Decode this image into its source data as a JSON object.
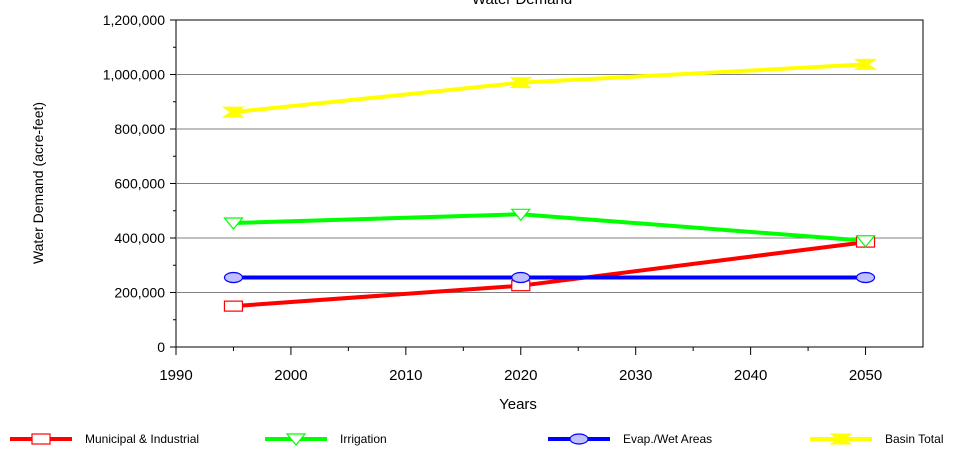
{
  "chart_data": {
    "type": "line",
    "title": "Water Demand",
    "xlabel": "Years",
    "ylabel": "Water Demand (acre-feet)",
    "xlim": [
      1990,
      2055
    ],
    "ylim": [
      0,
      1200000
    ],
    "x_ticks": [
      1990,
      2000,
      2010,
      2020,
      2030,
      2040,
      2050
    ],
    "x_tick_labels": [
      "1990",
      "2000",
      "2010",
      "2020",
      "2030",
      "2040",
      "2050"
    ],
    "y_ticks": [
      0,
      200000,
      400000,
      600000,
      800000,
      1000000,
      1200000
    ],
    "y_tick_labels": [
      "0",
      "200,000",
      "400,000",
      "600,000",
      "800,000",
      "1,000,000",
      "1,200,000"
    ],
    "grid": "horizontal",
    "legend_position": "bottom",
    "x": [
      1995,
      2020,
      2050
    ],
    "series": [
      {
        "name": "Municipal & Industrial",
        "values": [
          150000,
          225000,
          385000
        ],
        "color": "#ff0000",
        "marker": "square"
      },
      {
        "name": "Irrigation",
        "values": [
          455000,
          487000,
          390000
        ],
        "color": "#00ff00",
        "marker": "triangle-down"
      },
      {
        "name": "Evap./Wet Areas",
        "values": [
          255000,
          255000,
          255000
        ],
        "color": "#0000ff",
        "marker": "circle"
      },
      {
        "name": "Basin Total",
        "values": [
          862000,
          970000,
          1037000
        ],
        "color": "#ffff00",
        "marker": "bowtie"
      }
    ]
  }
}
